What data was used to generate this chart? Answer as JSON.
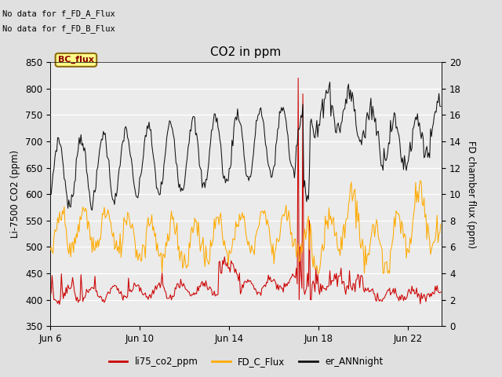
{
  "title": "CO2 in ppm",
  "ylabel_left": "Li-7500 CO2 (ppm)",
  "ylabel_right": "FD chamber flux (ppm)",
  "ylim_left": [
    350,
    850
  ],
  "ylim_right": [
    0,
    20
  ],
  "yticks_left": [
    350,
    400,
    450,
    500,
    550,
    600,
    650,
    700,
    750,
    800,
    850
  ],
  "yticks_right": [
    0,
    2,
    4,
    6,
    8,
    10,
    12,
    14,
    16,
    18,
    20
  ],
  "fig_bg_color": "#e0e0e0",
  "plot_bg_color": "#ebebeb",
  "grid_color": "#ffffff",
  "annotation_text1": "No data for f_FD_A_Flux",
  "annotation_text2": "No data for f_FD_B_Flux",
  "bc_flux_label": "BC_flux",
  "legend_items": [
    "li75_co2_ppm",
    "FD_C_Flux",
    "er_ANNnight"
  ],
  "legend_colors": [
    "#cc0000",
    "#ffaa00",
    "#111111"
  ],
  "line_color_li75": "#cc0000",
  "line_color_FD_C": "#ffaa00",
  "line_color_er_ANN": "#111111",
  "xtick_labels": [
    "Jun 6",
    "Jun 10",
    "Jun 14",
    "Jun 18",
    "Jun 22"
  ],
  "xtick_days": [
    0,
    4,
    8,
    12,
    16
  ],
  "xlim_days": [
    0,
    17.5
  ],
  "n_hours": 420,
  "total_days": 17.5
}
